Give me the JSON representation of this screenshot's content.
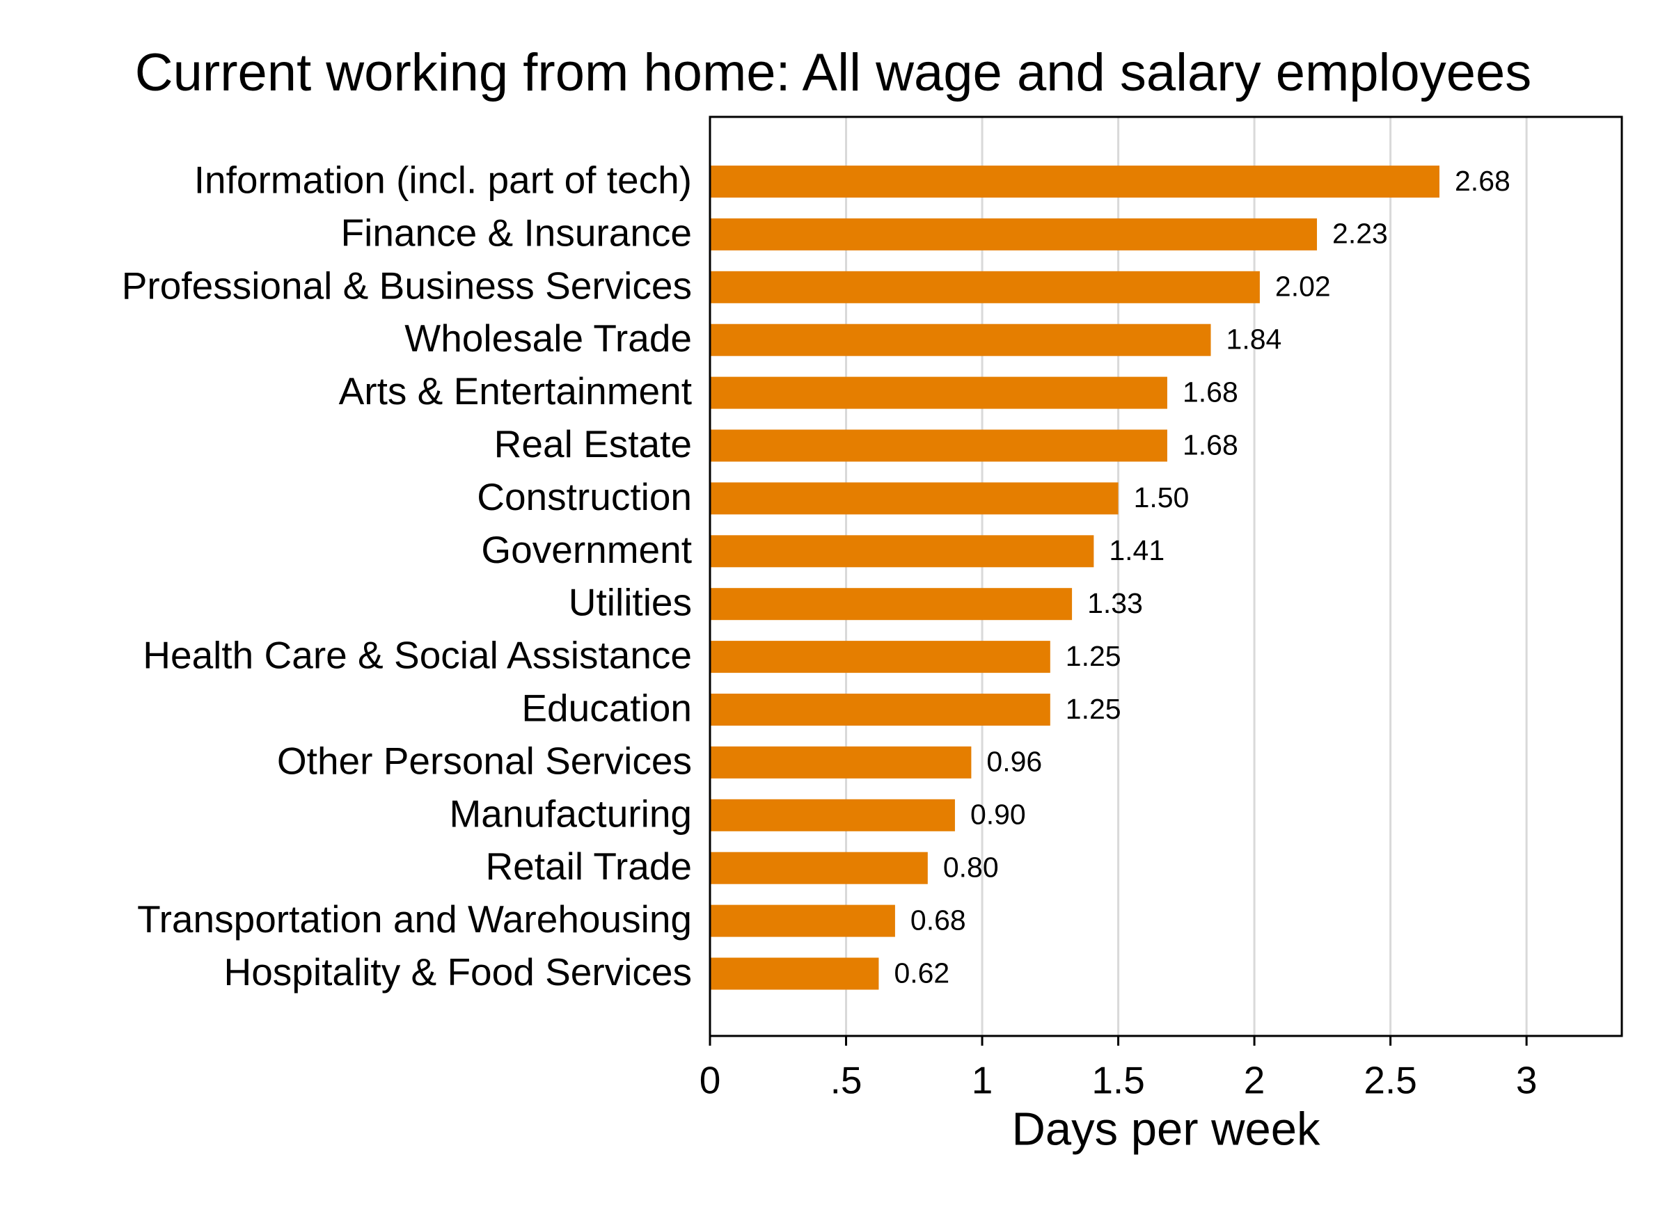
{
  "chart_data": {
    "type": "bar",
    "orientation": "horizontal",
    "title": "Current working from home: All wage and salary employees",
    "x_label": "Days per week",
    "categories": [
      "Information (incl. part of tech)",
      "Finance & Insurance",
      "Professional & Business Services",
      "Wholesale Trade",
      "Arts & Entertainment",
      "Real Estate",
      "Construction",
      "Government",
      "Utilities",
      "Health Care & Social Assistance",
      "Education",
      "Other Personal Services",
      "Manufacturing",
      "Retail Trade",
      "Transportation and Warehousing",
      "Hospitality & Food Services"
    ],
    "values": [
      2.68,
      2.23,
      2.02,
      1.84,
      1.68,
      1.68,
      1.5,
      1.41,
      1.33,
      1.25,
      1.25,
      0.96,
      0.9,
      0.8,
      0.68,
      0.62
    ],
    "value_labels": [
      "2.68",
      "2.23",
      "2.02",
      "1.84",
      "1.68",
      "1.68",
      "1.50",
      "1.41",
      "1.33",
      "1.25",
      "1.25",
      "0.96",
      "0.90",
      "0.80",
      "0.68",
      "0.62"
    ],
    "color": "#e57e00",
    "xlim": [
      0,
      3.35
    ],
    "xticks": [
      0,
      {
        "value": 0.5,
        "label": ".5"
      },
      1,
      1.5,
      2,
      2.5,
      3
    ],
    "grid": true
  }
}
